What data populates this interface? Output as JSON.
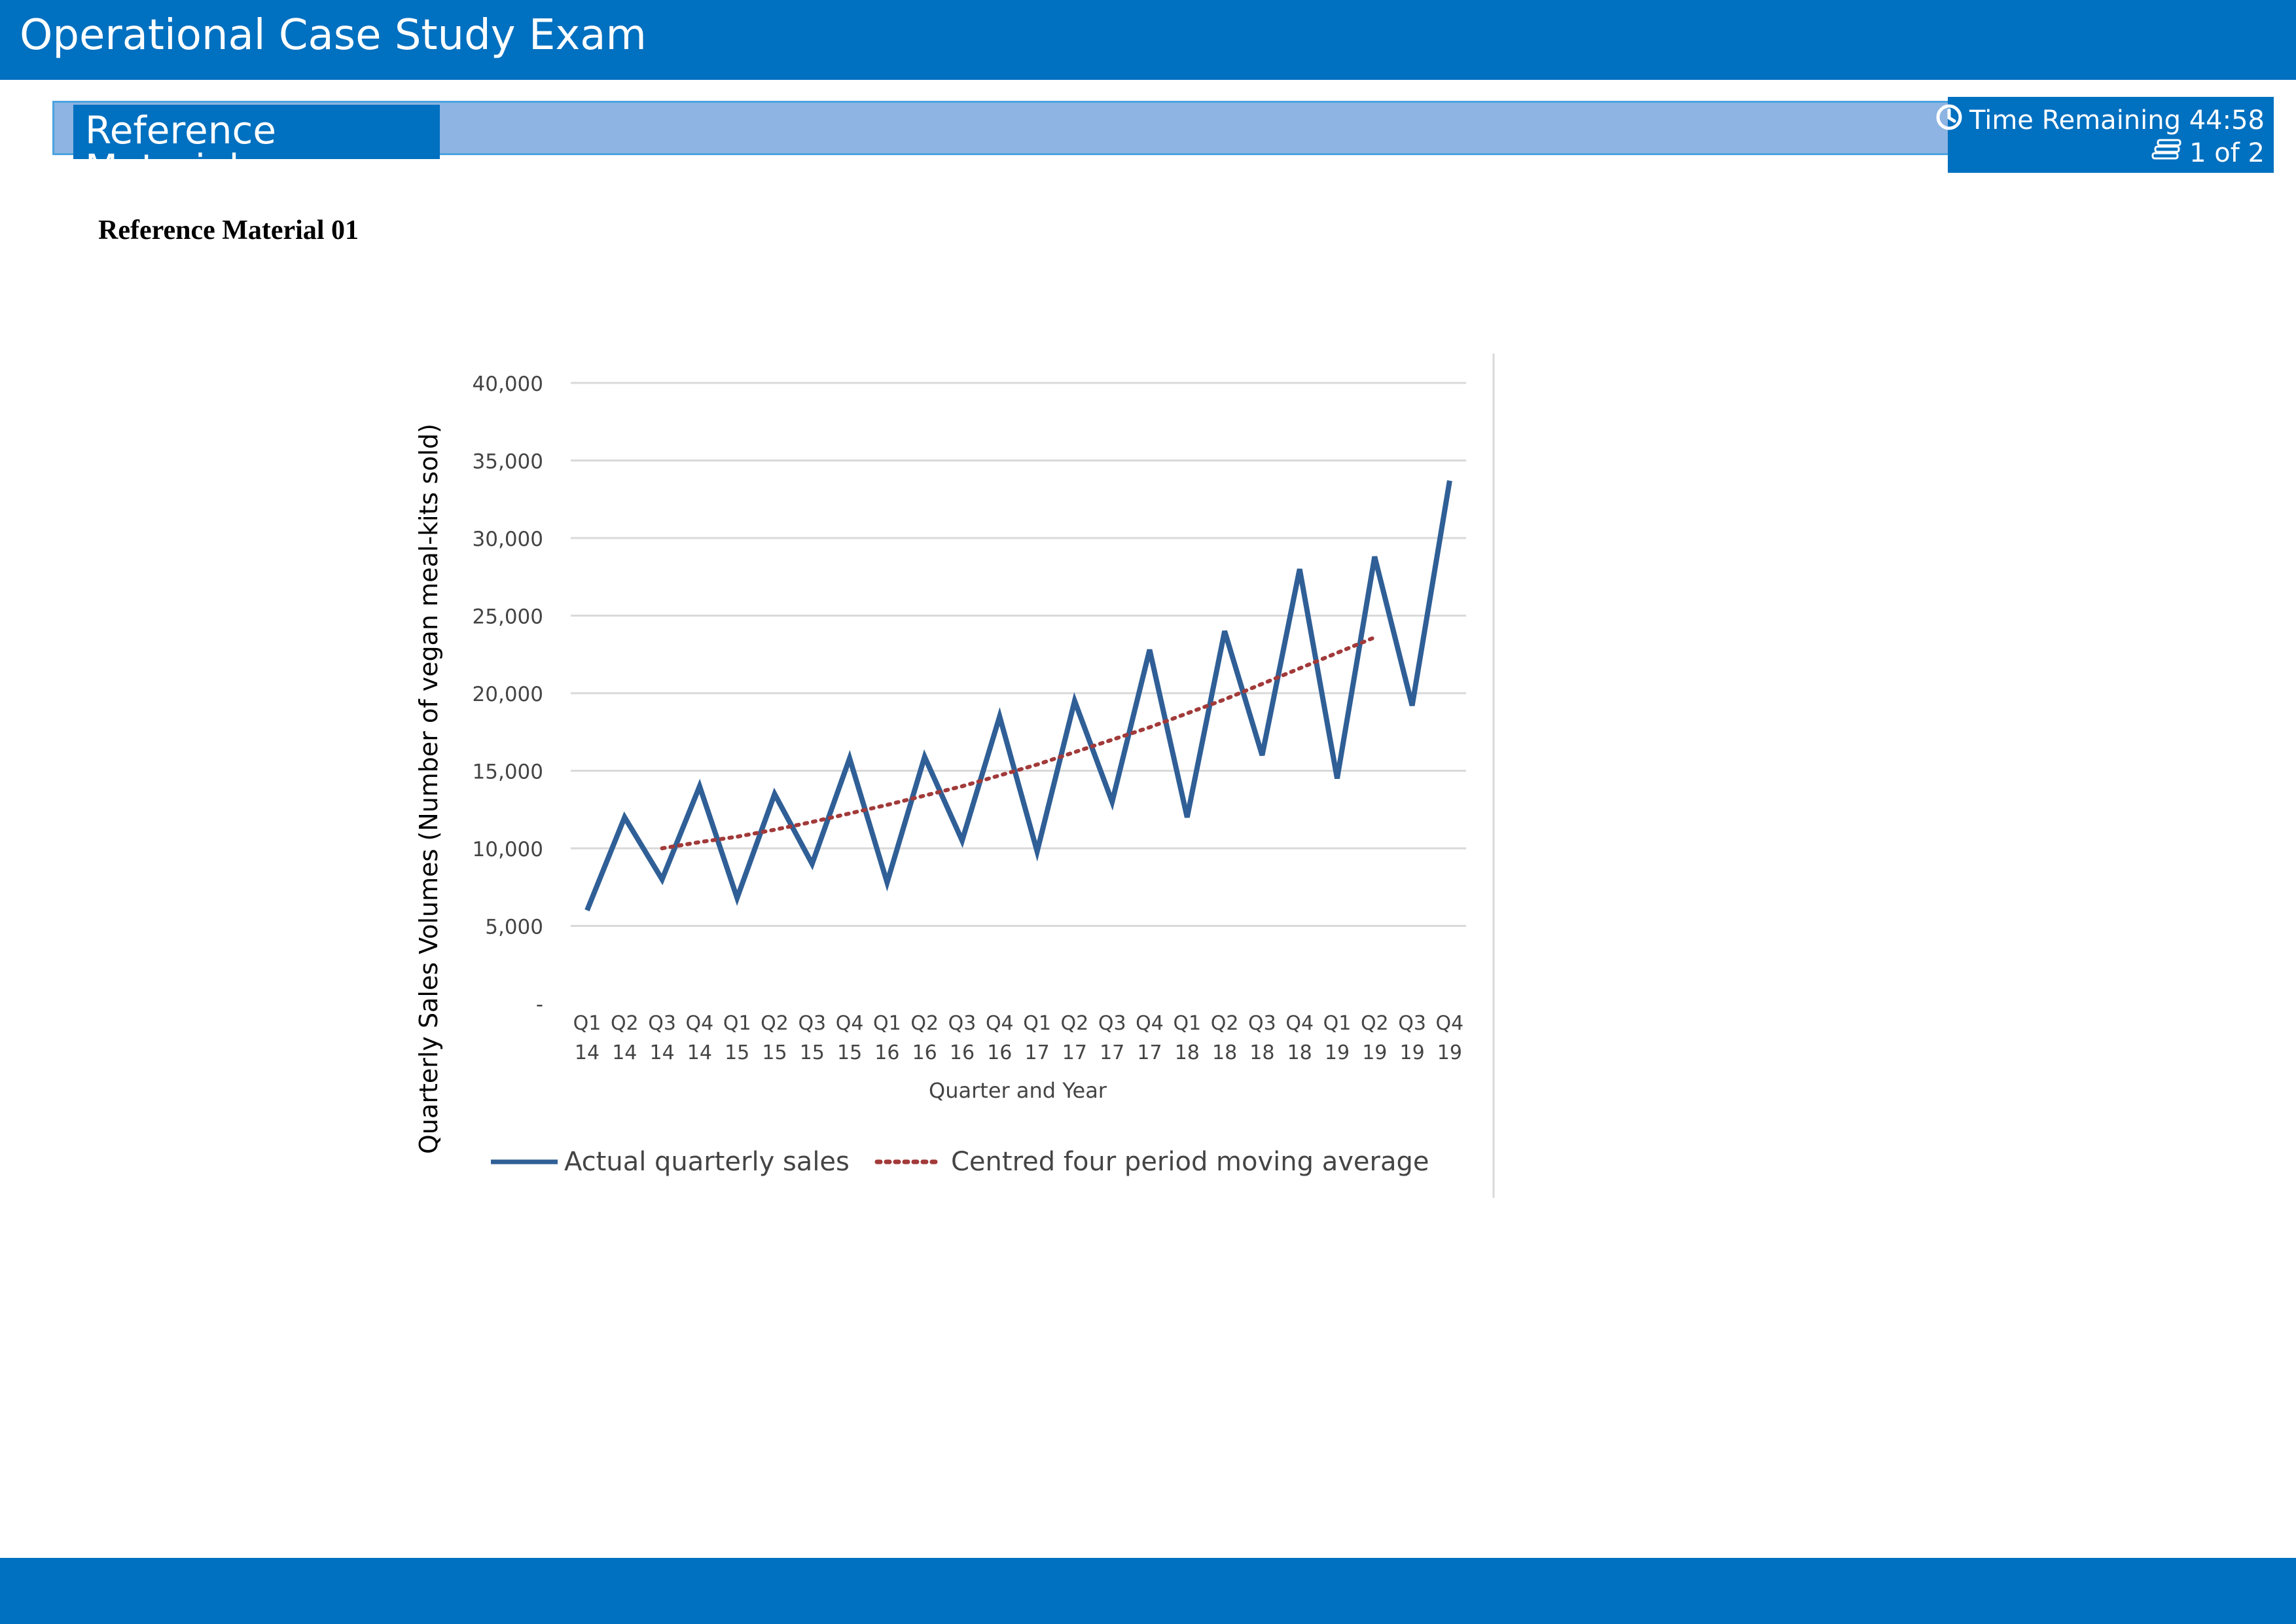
{
  "header": {
    "title": "Operational Case Study Exam"
  },
  "section": {
    "tab_label": "Reference Material"
  },
  "status": {
    "time_remaining": "Time Remaining 44:58",
    "page_indicator": "1 of 2",
    "clock_icon": "clock-icon",
    "page_icon": "document-stack-icon"
  },
  "document": {
    "heading": "Reference Material 01"
  },
  "colors": {
    "brand_blue": "#0070c0",
    "band_blue": "#8db4e2",
    "actual_series": "#2f5f96",
    "moving_average": "#a23a3a"
  },
  "chart_data": {
    "type": "line",
    "ylabel": "Quarterly Sales Volumes (Number of vegan meal-kits sold)",
    "xlabel": "Quarter and Year",
    "ylim": [
      0,
      40000
    ],
    "yticks": [
      0,
      5000,
      10000,
      15000,
      20000,
      25000,
      30000,
      35000,
      40000
    ],
    "ytick_labels": [
      "-",
      "5,000",
      "10,000",
      "15,000",
      "20,000",
      "25,000",
      "30,000",
      "35,000",
      "40,000"
    ],
    "grid": true,
    "legend": "bottom",
    "categories": [
      [
        "Q1",
        "14"
      ],
      [
        "Q2",
        "14"
      ],
      [
        "Q3",
        "14"
      ],
      [
        "Q4",
        "14"
      ],
      [
        "Q1",
        "15"
      ],
      [
        "Q2",
        "15"
      ],
      [
        "Q3",
        "15"
      ],
      [
        "Q4",
        "15"
      ],
      [
        "Q1",
        "16"
      ],
      [
        "Q2",
        "16"
      ],
      [
        "Q3",
        "16"
      ],
      [
        "Q4",
        "16"
      ],
      [
        "Q1",
        "17"
      ],
      [
        "Q2",
        "17"
      ],
      [
        "Q3",
        "17"
      ],
      [
        "Q4",
        "17"
      ],
      [
        "Q1",
        "18"
      ],
      [
        "Q2",
        "18"
      ],
      [
        "Q3",
        "18"
      ],
      [
        "Q4",
        "18"
      ],
      [
        "Q1",
        "19"
      ],
      [
        "Q2",
        "19"
      ],
      [
        "Q3",
        "19"
      ],
      [
        "Q4",
        "19"
      ]
    ],
    "series": [
      {
        "name": "Actual quarterly sales",
        "style": "solid",
        "values": [
          6000,
          12000,
          8000,
          14000,
          6800,
          13500,
          9000,
          15800,
          7800,
          15900,
          10500,
          18500,
          9800,
          19500,
          13000,
          22800,
          12000,
          24000,
          16000,
          28000,
          14500,
          28800,
          19200,
          33700
        ]
      },
      {
        "name": "Centred four period moving average",
        "style": "dotted",
        "values": [
          null,
          null,
          10000,
          10400,
          10750,
          11200,
          11700,
          12250,
          12800,
          13400,
          14000,
          14700,
          15400,
          16200,
          17000,
          17800,
          18700,
          19600,
          20600,
          21600,
          22600,
          23600,
          null,
          null
        ]
      }
    ]
  }
}
